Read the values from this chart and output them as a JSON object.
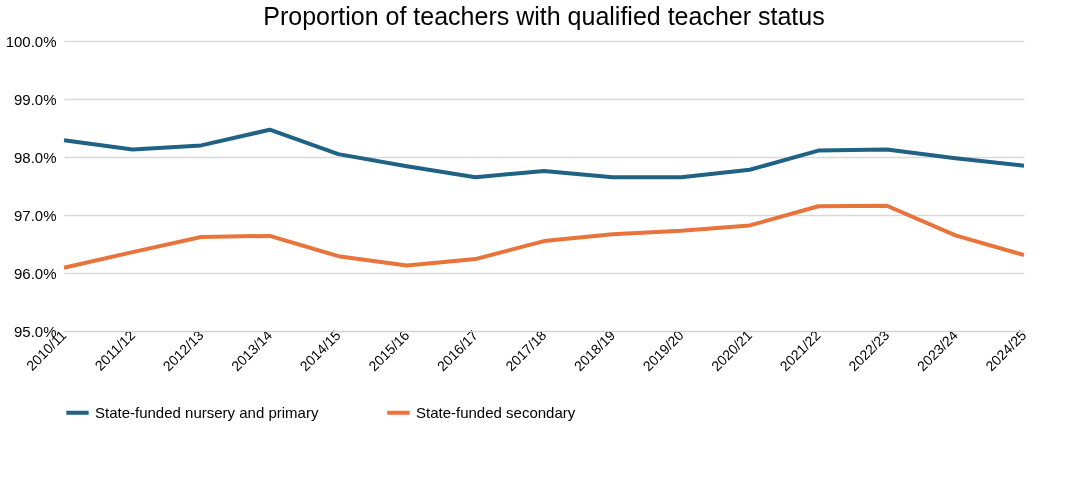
{
  "chart_data": {
    "type": "line",
    "title": "Proportion of teachers with qualified teacher status",
    "categories": [
      "2010/11",
      "2011/12",
      "2012/13",
      "2013/14",
      "2014/15",
      "2015/16",
      "2016/17",
      "2017/18",
      "2018/19",
      "2019/20",
      "2020/21",
      "2021/22",
      "2022/23",
      "2023/24",
      "2024/25"
    ],
    "series": [
      {
        "name": "State-funded nursery and primary",
        "color": "#1f6284",
        "values": [
          98.29,
          98.13,
          98.2,
          98.47,
          98.05,
          97.84,
          97.65,
          97.76,
          97.65,
          97.65,
          97.78,
          98.11,
          98.13,
          97.98,
          97.85
        ]
      },
      {
        "name": "State-funded secondary",
        "color": "#e8743b",
        "values": [
          96.09,
          96.36,
          96.62,
          96.64,
          96.29,
          96.13,
          96.24,
          96.55,
          96.67,
          96.73,
          96.82,
          97.15,
          97.16,
          96.65,
          96.31
        ]
      }
    ],
    "ylim": [
      95,
      100
    ],
    "yticks": [
      {
        "value": 95,
        "label": "95.0%"
      },
      {
        "value": 96,
        "label": "96.0%"
      },
      {
        "value": 97,
        "label": "97.0%"
      },
      {
        "value": 98,
        "label": "98.0%"
      },
      {
        "value": 99,
        "label": "99.0%"
      },
      {
        "value": 100,
        "label": "100.0%"
      }
    ],
    "grid": "y",
    "legend": "bottom",
    "marker": "none",
    "line_style": "solid"
  }
}
